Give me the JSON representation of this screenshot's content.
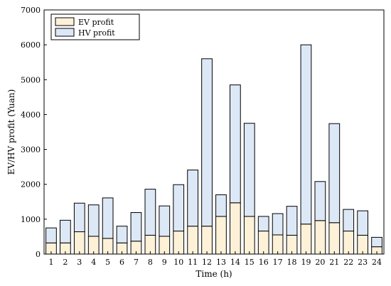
{
  "chart_data": {
    "type": "bar",
    "stacked": true,
    "title": "",
    "xlabel": "Time (h)",
    "ylabel": "EV/HV profit (Yuan)",
    "ylim": [
      0,
      7000
    ],
    "yticks": [
      0,
      1000,
      2000,
      3000,
      4000,
      5000,
      6000,
      7000
    ],
    "categories": [
      "1",
      "2",
      "3",
      "4",
      "5",
      "6",
      "7",
      "8",
      "9",
      "10",
      "11",
      "12",
      "13",
      "14",
      "15",
      "16",
      "17",
      "18",
      "19",
      "20",
      "21",
      "22",
      "23",
      "24"
    ],
    "series": [
      {
        "name": "EV profit",
        "color": "#fdf1d8",
        "values": [
          320,
          320,
          640,
          510,
          450,
          320,
          370,
          540,
          510,
          660,
          800,
          800,
          1080,
          1470,
          1080,
          660,
          550,
          540,
          860,
          960,
          900,
          660,
          540,
          210
        ]
      },
      {
        "name": "HV profit",
        "color": "#dde8f7",
        "values": [
          430,
          650,
          820,
          900,
          1160,
          480,
          820,
          1320,
          870,
          1330,
          1610,
          4800,
          620,
          3380,
          2670,
          420,
          610,
          830,
          5140,
          1120,
          2840,
          620,
          700,
          270
        ]
      }
    ],
    "legend": "top-left",
    "grid": false
  }
}
